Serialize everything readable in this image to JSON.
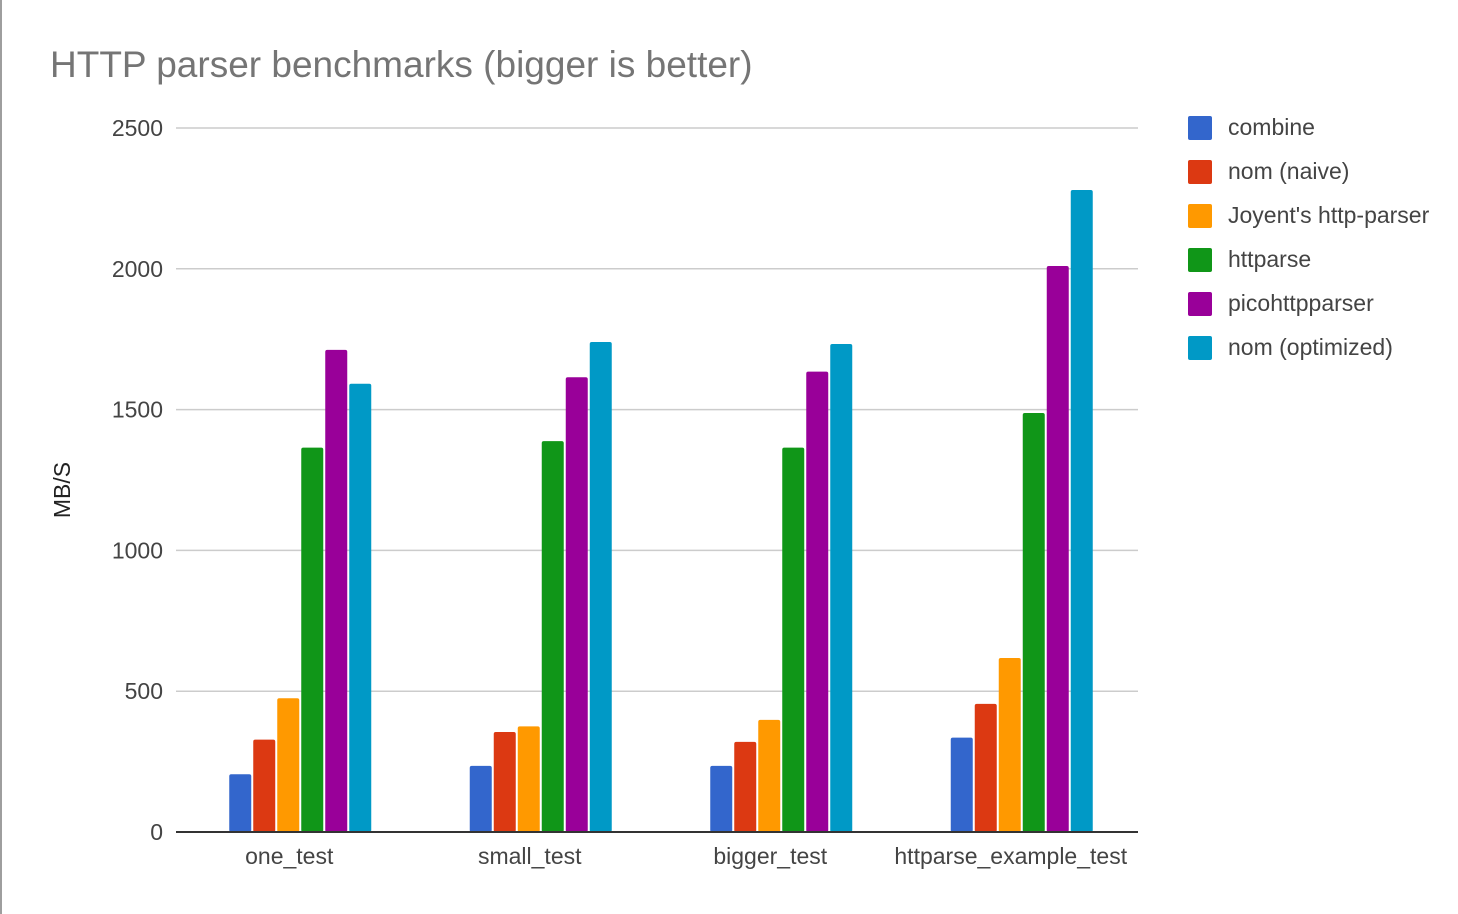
{
  "chart_data": {
    "type": "bar",
    "title": "HTTP parser benchmarks (bigger is better)",
    "xlabel": "",
    "ylabel": "MB/S",
    "ylim": [
      0,
      2500
    ],
    "yticks": [
      0,
      500,
      1000,
      1500,
      2000,
      2500
    ],
    "grid": true,
    "legend_position": "right",
    "categories": [
      "one_test",
      "small_test",
      "bigger_test",
      "httparse_example_test"
    ],
    "series": [
      {
        "name": "combine",
        "color": "#3366cc",
        "values": [
          205,
          235,
          235,
          335
        ]
      },
      {
        "name": "nom (naive)",
        "color": "#dc3912",
        "values": [
          328,
          355,
          320,
          455
        ]
      },
      {
        "name": "Joyent's http-parser",
        "color": "#ff9900",
        "values": [
          475,
          375,
          398,
          618
        ]
      },
      {
        "name": "httparse",
        "color": "#109618",
        "values": [
          1365,
          1388,
          1365,
          1488
        ]
      },
      {
        "name": "picohttpparser",
        "color": "#990099",
        "values": [
          1712,
          1615,
          1635,
          2010
        ]
      },
      {
        "name": "nom (optimized)",
        "color": "#0099c6",
        "values": [
          1592,
          1740,
          1733,
          2280
        ]
      }
    ]
  }
}
